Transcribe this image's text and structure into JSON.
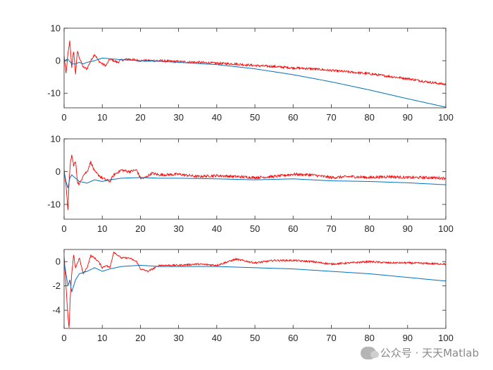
{
  "watermark": {
    "text": "公众号 · 天天Matlab",
    "icon": "wechat-icon"
  },
  "colors": {
    "series_red": "#ff0000",
    "series_blue": "#0072bd",
    "axes": "#262626"
  },
  "chart_data": [
    {
      "type": "line",
      "title": "",
      "xlabel": "",
      "ylabel": "",
      "xlim": [
        0,
        100
      ],
      "ylim": [
        -14.5,
        10
      ],
      "xticks": [
        0,
        10,
        20,
        30,
        40,
        50,
        60,
        70,
        80,
        90,
        100
      ],
      "yticks": [
        -10,
        0,
        10
      ],
      "grid": false,
      "series": [
        {
          "color": "#ff0000",
          "noise": 0.35,
          "x": [
            0,
            0.5,
            1,
            1.5,
            2,
            2.5,
            3,
            3.5,
            4,
            5,
            6,
            7,
            8,
            9,
            10,
            11,
            12,
            13,
            14,
            15,
            17,
            20,
            25,
            30,
            35,
            40,
            45,
            50,
            55,
            60,
            65,
            70,
            75,
            80,
            85,
            90,
            95,
            100
          ],
          "y": [
            1.5,
            -4,
            2,
            6,
            -2,
            3,
            -4,
            3,
            1,
            -2,
            -2.5,
            0,
            2,
            0,
            -1,
            -1.5,
            0.5,
            0,
            -0.5,
            0.2,
            0.5,
            0,
            0,
            -0.3,
            -0.5,
            -0.8,
            -1,
            -1.5,
            -1.8,
            -2.2,
            -2.5,
            -3,
            -3.5,
            -4,
            -4.8,
            -5.5,
            -6.5,
            -7.3
          ]
        },
        {
          "color": "#0072bd",
          "noise": 0,
          "x": [
            0,
            1,
            2,
            3,
            4,
            5,
            6,
            8,
            10,
            15,
            20,
            25,
            30,
            40,
            50,
            60,
            70,
            80,
            90,
            100
          ],
          "y": [
            0,
            0.5,
            -1,
            -1,
            -0.5,
            -1,
            -0.5,
            0,
            0.8,
            0.3,
            0,
            -0.2,
            -0.5,
            -1.2,
            -2.5,
            -4.3,
            -6.5,
            -9,
            -11.7,
            -14.3
          ]
        }
      ]
    },
    {
      "type": "line",
      "title": "",
      "xlabel": "",
      "ylabel": "",
      "xlim": [
        0,
        100
      ],
      "ylim": [
        -14.5,
        10
      ],
      "xticks": [
        0,
        10,
        20,
        30,
        40,
        50,
        60,
        70,
        80,
        90,
        100
      ],
      "yticks": [
        -10,
        0,
        10
      ],
      "grid": false,
      "series": [
        {
          "color": "#ff0000",
          "noise": 0.4,
          "x": [
            0,
            0.5,
            1,
            1.3,
            1.7,
            2,
            2.5,
            3,
            3.5,
            4,
            5,
            6,
            7,
            8,
            9,
            10,
            11,
            12,
            13,
            15,
            17,
            19,
            20,
            21,
            23,
            25,
            30,
            35,
            40,
            45,
            50,
            55,
            60,
            65,
            70,
            75,
            80,
            85,
            90,
            95,
            100
          ],
          "y": [
            0.5,
            -4,
            -12,
            -3,
            3,
            5,
            2,
            3,
            -3,
            -4,
            -1,
            0,
            3,
            0,
            -1,
            -2,
            -2.5,
            -3,
            -1,
            0.5,
            0,
            0.5,
            -2,
            -2,
            -0.5,
            -1,
            -0.8,
            -1.5,
            -1.2,
            -1.5,
            -1.8,
            -1.5,
            -0.8,
            -1,
            -1.8,
            -1.5,
            -1.8,
            -1.5,
            -1.8,
            -1.8,
            -2
          ]
        },
        {
          "color": "#0072bd",
          "noise": 0,
          "x": [
            0,
            0.5,
            1,
            1.5,
            2,
            3,
            4,
            6,
            8,
            10,
            12,
            15,
            20,
            25,
            30,
            40,
            50,
            60,
            70,
            80,
            90,
            100
          ],
          "y": [
            0,
            -3,
            -5,
            -2,
            -1,
            -2,
            -3,
            -3.5,
            -2.5,
            -3,
            -2.5,
            -2,
            -1.8,
            -2,
            -2,
            -2.2,
            -2.5,
            -2.2,
            -2.8,
            -3,
            -3.4,
            -4
          ]
        }
      ]
    },
    {
      "type": "line",
      "title": "",
      "xlabel": "",
      "ylabel": "",
      "xlim": [
        0,
        100
      ],
      "ylim": [
        -5.5,
        1
      ],
      "xticks": [
        0,
        10,
        20,
        30,
        40,
        50,
        60,
        70,
        80,
        90,
        100
      ],
      "yticks": [
        -4,
        -2,
        0
      ],
      "grid": false,
      "series": [
        {
          "color": "#ff0000",
          "noise": 0.07,
          "x": [
            0,
            0.5,
            1,
            1.3,
            1.6,
            2,
            2.5,
            3,
            4,
            5,
            6,
            7,
            8,
            9,
            10,
            11,
            12,
            13,
            15,
            17,
            19,
            20,
            22,
            25,
            30,
            35,
            40,
            45,
            50,
            55,
            60,
            65,
            70,
            75,
            80,
            85,
            90,
            95,
            100
          ],
          "y": [
            0.5,
            -2,
            -4.5,
            -5.5,
            -3,
            -1,
            0.5,
            -0.5,
            0.3,
            -1,
            -0.5,
            0.5,
            0.3,
            0,
            -0.5,
            -0.3,
            -0.5,
            0.8,
            0.3,
            0.3,
            0,
            -0.6,
            -0.8,
            -0.3,
            -0.3,
            -0.2,
            -0.3,
            0.2,
            -0.1,
            0.1,
            0.1,
            0,
            -0.2,
            -0.1,
            0,
            -0.1,
            -0.1,
            -0.15,
            -0.2
          ]
        },
        {
          "color": "#0072bd",
          "noise": 0,
          "x": [
            0,
            0.5,
            1,
            1.5,
            2,
            3,
            4,
            6,
            8,
            10,
            12,
            15,
            20,
            25,
            30,
            40,
            50,
            60,
            70,
            80,
            90,
            100
          ],
          "y": [
            0,
            -1,
            -2,
            -1.5,
            -2.5,
            -1.5,
            -1,
            -0.8,
            -0.5,
            -0.8,
            -0.6,
            -0.4,
            -0.3,
            -0.4,
            -0.4,
            -0.4,
            -0.5,
            -0.6,
            -0.8,
            -1,
            -1.3,
            -1.6
          ]
        }
      ]
    }
  ]
}
